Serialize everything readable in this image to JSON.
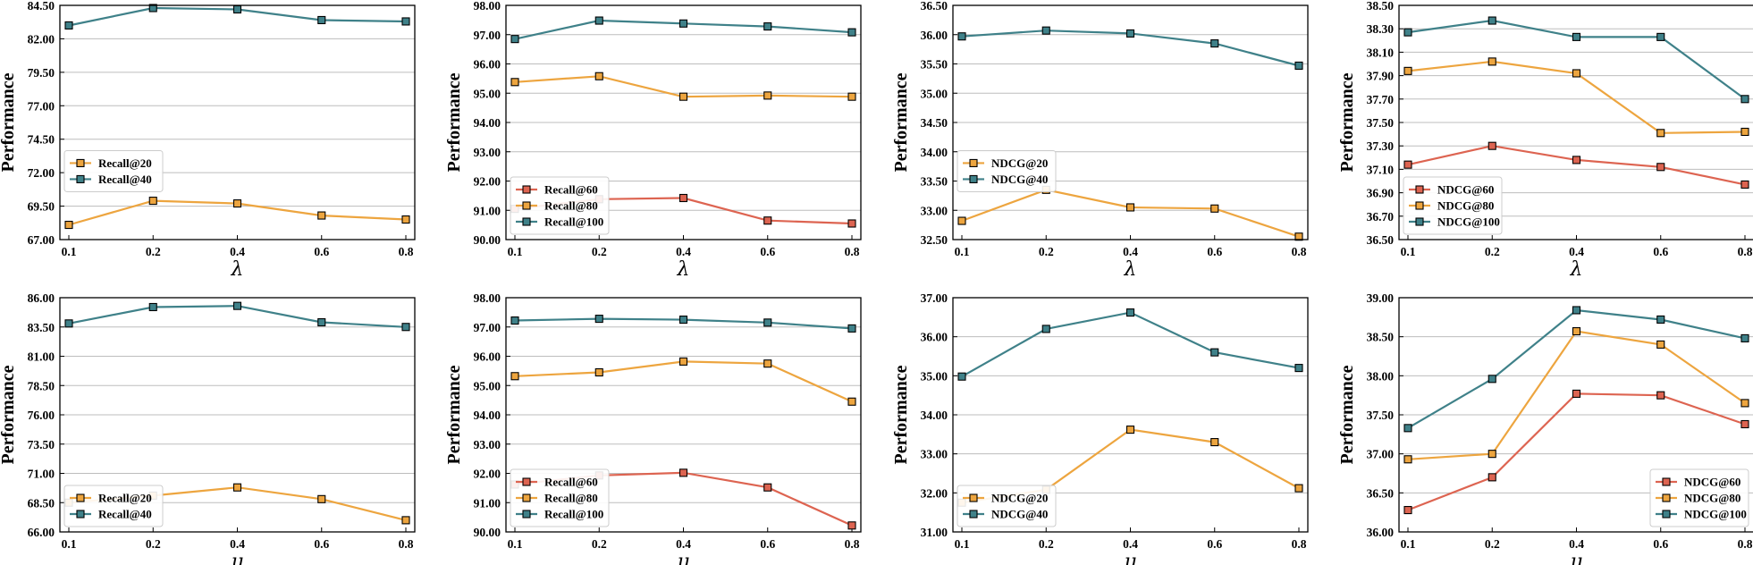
{
  "colors": {
    "red": "#dd6451",
    "orange": "#eda53f",
    "teal": "#3f8189",
    "grid": "#bdbdbd",
    "axis": "#000000"
  },
  "chart_data": [
    {
      "type": "line",
      "panel": "recall-lambda-20-40",
      "x": [
        0.1,
        0.2,
        0.4,
        0.6,
        0.8
      ],
      "xticks": [
        "0.1",
        "0.2",
        "0.4",
        "0.6",
        "0.8"
      ],
      "xlabel": "λ",
      "ylabel": "Performance",
      "ylim": [
        67.0,
        84.5
      ],
      "yticks": [
        "67.00",
        "69.50",
        "72.00",
        "74.50",
        "77.00",
        "79.50",
        "82.00",
        "84.50"
      ],
      "legend_loc": "center-left",
      "series": [
        {
          "name": "Recall@20",
          "color": "orange",
          "values": [
            68.1,
            69.9,
            69.7,
            68.8,
            68.5
          ]
        },
        {
          "name": "Recall@40",
          "color": "teal",
          "values": [
            83.0,
            84.3,
            84.2,
            83.4,
            83.3
          ]
        }
      ]
    },
    {
      "type": "line",
      "panel": "recall-lambda-60-100",
      "x": [
        0.1,
        0.2,
        0.4,
        0.6,
        0.8
      ],
      "xticks": [
        "0.1",
        "0.2",
        "0.4",
        "0.6",
        "0.8"
      ],
      "xlabel": "λ",
      "ylabel": "Performance",
      "ylim": [
        90.0,
        98.0
      ],
      "yticks": [
        "90.00",
        "91.00",
        "92.00",
        "93.00",
        "94.00",
        "95.00",
        "96.00",
        "97.00",
        "98.00"
      ],
      "legend_loc": "lower-left",
      "series": [
        {
          "name": "Recall@60",
          "color": "red",
          "values": [
            91.05,
            91.38,
            91.42,
            90.65,
            90.55
          ]
        },
        {
          "name": "Recall@80",
          "color": "orange",
          "values": [
            95.38,
            95.58,
            94.88,
            94.92,
            94.88
          ]
        },
        {
          "name": "Recall@100",
          "color": "teal",
          "values": [
            96.85,
            97.48,
            97.38,
            97.28,
            97.08
          ]
        }
      ]
    },
    {
      "type": "line",
      "panel": "ndcg-lambda-20-40",
      "x": [
        0.1,
        0.2,
        0.4,
        0.6,
        0.8
      ],
      "xticks": [
        "0.1",
        "0.2",
        "0.4",
        "0.6",
        "0.8"
      ],
      "xlabel": "λ",
      "ylabel": "Performance",
      "ylim": [
        32.5,
        36.5
      ],
      "yticks": [
        "32.50",
        "33.00",
        "33.50",
        "34.00",
        "34.50",
        "35.00",
        "35.50",
        "36.00",
        "36.50"
      ],
      "legend_loc": "center-left",
      "series": [
        {
          "name": "NDCG@20",
          "color": "orange",
          "values": [
            32.82,
            33.35,
            33.05,
            33.03,
            32.55
          ]
        },
        {
          "name": "NDCG@40",
          "color": "teal",
          "values": [
            35.97,
            36.07,
            36.02,
            35.85,
            35.47
          ]
        }
      ]
    },
    {
      "type": "line",
      "panel": "ndcg-lambda-60-100",
      "x": [
        0.1,
        0.2,
        0.4,
        0.6,
        0.8
      ],
      "xticks": [
        "0.1",
        "0.2",
        "0.4",
        "0.6",
        "0.8"
      ],
      "xlabel": "λ",
      "ylabel": "Performance",
      "ylim": [
        36.5,
        38.5
      ],
      "yticks": [
        "36.50",
        "36.70",
        "36.90",
        "37.10",
        "37.30",
        "37.50",
        "37.70",
        "37.90",
        "38.10",
        "38.30",
        "38.50"
      ],
      "legend_loc": "lower-left",
      "series": [
        {
          "name": "NDCG@60",
          "color": "red",
          "values": [
            37.14,
            37.3,
            37.18,
            37.12,
            36.97
          ]
        },
        {
          "name": "NDCG@80",
          "color": "orange",
          "values": [
            37.94,
            38.02,
            37.92,
            37.41,
            37.42
          ]
        },
        {
          "name": "NDCG@100",
          "color": "teal",
          "values": [
            38.27,
            38.37,
            38.23,
            38.23,
            37.7
          ]
        }
      ]
    },
    {
      "type": "line",
      "panel": "recall-mu-20-40",
      "x": [
        0.1,
        0.2,
        0.4,
        0.6,
        0.8
      ],
      "xticks": [
        "0.1",
        "0.2",
        "0.4",
        "0.6",
        "0.8"
      ],
      "xlabel": "μ",
      "ylabel": "Performance",
      "ylim": [
        66.0,
        86.0
      ],
      "yticks": [
        "66.00",
        "68.50",
        "71.00",
        "73.50",
        "76.00",
        "78.50",
        "81.00",
        "83.50",
        "86.00"
      ],
      "legend_loc": "lower-left",
      "series": [
        {
          "name": "Recall@20",
          "color": "orange",
          "values": [
            68.5,
            69.1,
            69.8,
            68.8,
            67.0
          ]
        },
        {
          "name": "Recall@40",
          "color": "teal",
          "values": [
            83.8,
            85.2,
            85.3,
            83.9,
            83.5
          ]
        }
      ]
    },
    {
      "type": "line",
      "panel": "recall-mu-60-100",
      "x": [
        0.1,
        0.2,
        0.4,
        0.6,
        0.8
      ],
      "xticks": [
        "0.1",
        "0.2",
        "0.4",
        "0.6",
        "0.8"
      ],
      "xlabel": "μ",
      "ylabel": "Performance",
      "ylim": [
        90.0,
        98.0
      ],
      "yticks": [
        "90.00",
        "91.00",
        "92.00",
        "93.00",
        "94.00",
        "95.00",
        "96.00",
        "97.00",
        "98.00"
      ],
      "legend_loc": "lower-left",
      "series": [
        {
          "name": "Recall@60",
          "color": "red",
          "values": [
            91.62,
            91.93,
            92.02,
            91.52,
            90.22
          ]
        },
        {
          "name": "Recall@80",
          "color": "orange",
          "values": [
            95.32,
            95.45,
            95.82,
            95.75,
            94.45
          ]
        },
        {
          "name": "Recall@100",
          "color": "teal",
          "values": [
            97.22,
            97.28,
            97.25,
            97.15,
            96.95
          ]
        }
      ]
    },
    {
      "type": "line",
      "panel": "ndcg-mu-20-40",
      "x": [
        0.1,
        0.2,
        0.4,
        0.6,
        0.8
      ],
      "xticks": [
        "0.1",
        "0.2",
        "0.4",
        "0.6",
        "0.8"
      ],
      "xlabel": "μ",
      "ylabel": "Performance",
      "ylim": [
        31.0,
        37.0
      ],
      "yticks": [
        "31.00",
        "32.00",
        "33.00",
        "34.00",
        "35.00",
        "36.00",
        "37.00"
      ],
      "legend_loc": "lower-left",
      "series": [
        {
          "name": "NDCG@20",
          "color": "orange",
          "values": [
            31.75,
            32.08,
            33.62,
            33.3,
            32.12
          ]
        },
        {
          "name": "NDCG@40",
          "color": "teal",
          "values": [
            34.98,
            36.2,
            36.62,
            35.6,
            35.2
          ]
        }
      ]
    },
    {
      "type": "line",
      "panel": "ndcg-mu-60-100",
      "x": [
        0.1,
        0.2,
        0.4,
        0.6,
        0.8
      ],
      "xticks": [
        "0.1",
        "0.2",
        "0.4",
        "0.6",
        "0.8"
      ],
      "xlabel": "μ",
      "ylabel": "Performance",
      "ylim": [
        36.0,
        39.0
      ],
      "yticks": [
        "36.00",
        "36.50",
        "37.00",
        "37.50",
        "38.00",
        "38.50",
        "39.00"
      ],
      "legend_loc": "lower-right",
      "series": [
        {
          "name": "NDCG@60",
          "color": "red",
          "values": [
            36.28,
            36.7,
            37.77,
            37.75,
            37.38
          ]
        },
        {
          "name": "NDCG@80",
          "color": "orange",
          "values": [
            36.93,
            37.0,
            38.57,
            38.4,
            37.65
          ]
        },
        {
          "name": "NDCG@100",
          "color": "teal",
          "values": [
            37.33,
            37.96,
            38.84,
            38.72,
            38.48
          ]
        }
      ]
    }
  ]
}
